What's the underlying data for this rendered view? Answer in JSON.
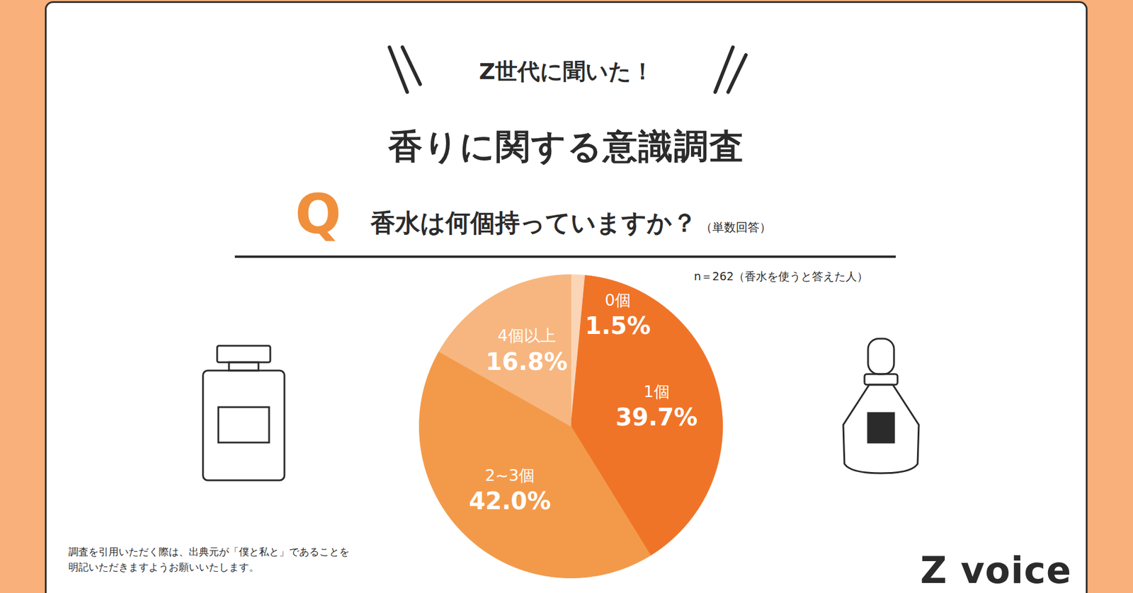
{
  "header": {
    "kicker": "Z世代に聞いた！",
    "title": "香りに関する意識調査",
    "q_mark": "Q",
    "question": "香水は何個持っていますか？",
    "question_note": "（単数回答）"
  },
  "chart_data": {
    "type": "pie",
    "note": "n＝262（香水を使うと答えた人）",
    "categories": [
      "0個",
      "1個",
      "2~3個",
      "4個以上"
    ],
    "values": [
      1.5,
      39.7,
      42.0,
      16.8
    ],
    "value_labels": [
      "1.5%",
      "39.7%",
      "42.0%",
      "16.8%"
    ],
    "colors": [
      "#fbd5b6",
      "#f07428",
      "#f39a4a",
      "#f7b67f"
    ],
    "data_labels": true
  },
  "footer": {
    "citation": [
      "調査を引用いただく際は、出典元が「僕と私と」であることを",
      "明記いただきますようお願いいたします。"
    ],
    "logo": "Z voice"
  }
}
